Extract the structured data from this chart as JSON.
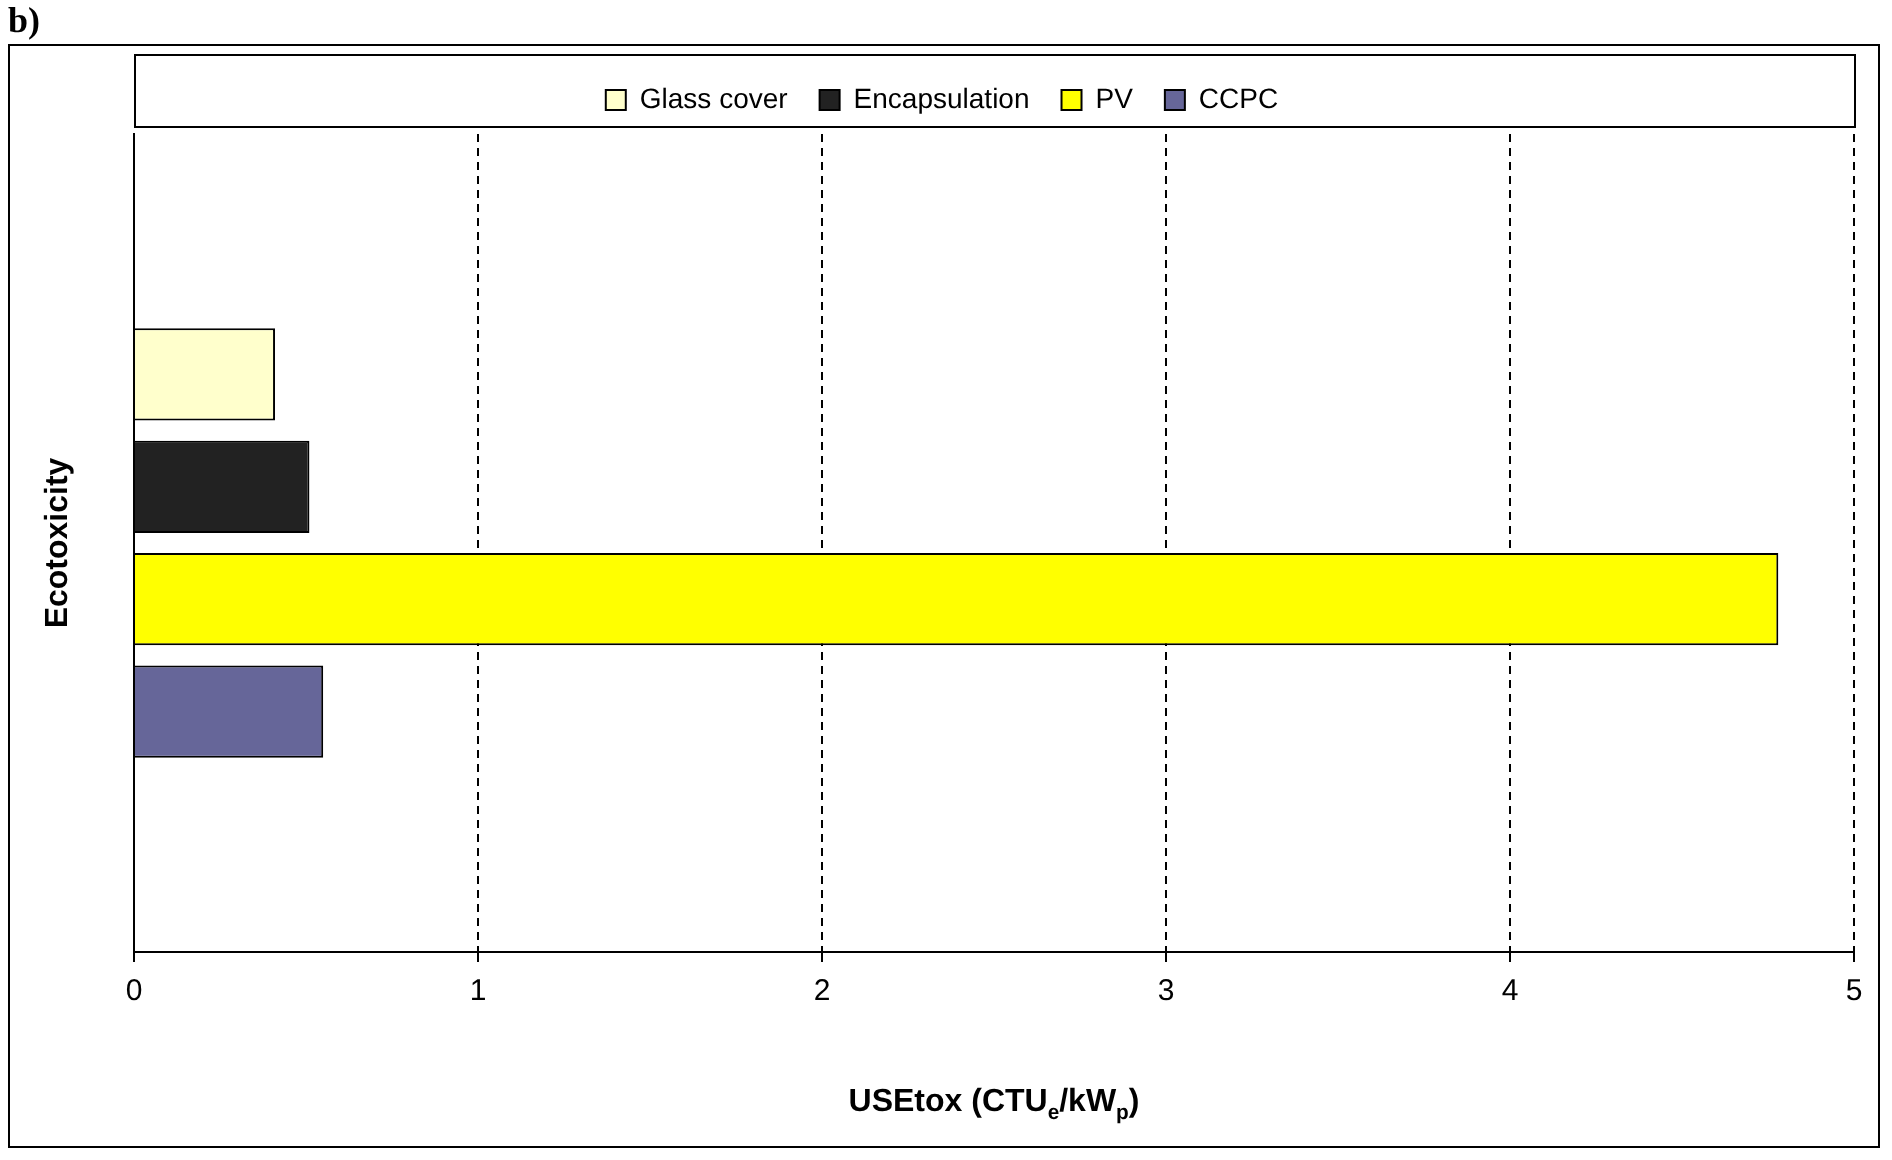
{
  "chart_data": {
    "type": "bar",
    "orientation": "horizontal",
    "title": "b)",
    "xlabel": "USEtox (CTU$_{e}$/kW$_{p}$)",
    "ylabel": "Ecotoxicity",
    "categories": [
      null
    ],
    "series": [
      {
        "name": "Glass cover",
        "color": "#ffffcc",
        "values": [
          0.41
        ]
      },
      {
        "name": "Encapsulation",
        "color": "#222222",
        "values": [
          0.51
        ]
      },
      {
        "name": "PV",
        "color": "#ffff00",
        "values": [
          4.78
        ]
      },
      {
        "name": "CCPC",
        "color": "#666699",
        "values": [
          0.55
        ]
      }
    ],
    "xlim": [
      0,
      5
    ],
    "xticks": [
      0,
      1,
      2,
      3,
      4,
      5
    ],
    "grid": "x",
    "line_style": "dashed",
    "legend": "top"
  }
}
